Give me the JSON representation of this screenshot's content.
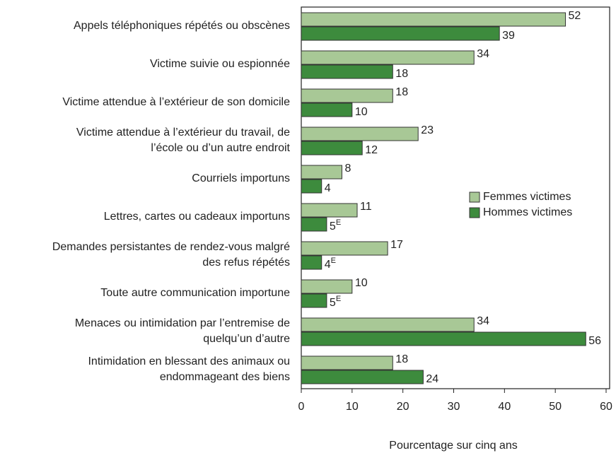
{
  "chart_data": {
    "type": "hbar",
    "categories": [
      "Appels téléphoniques répétés ou obscènes",
      "Victime suivie ou espionnée",
      "Victime attendue à l’extérieur de son domicile",
      "Victime attendue à l’extérieur du travail, de\nl’école ou d’un autre endroit",
      "Courriels importuns",
      "Lettres, cartes ou cadeaux importuns",
      "Demandes persistantes de rendez-vous malgré\ndes refus répétés",
      "Toute autre communication importune",
      "Menaces ou intimidation par l’entremise de\nquelqu’un d’autre",
      "Intimidation en blessant des animaux ou\nendommageant des biens"
    ],
    "series": [
      {
        "name": "Femmes victimes",
        "color": "#a8c896",
        "values": [
          52,
          34,
          18,
          23,
          8,
          11,
          17,
          10,
          34,
          18
        ]
      },
      {
        "name": "Hommes victimes",
        "color": "#3d8b3d",
        "values": [
          39,
          18,
          10,
          12,
          4,
          5,
          4,
          5,
          56,
          24
        ],
        "value_labels": [
          "39",
          "18",
          "10",
          "12",
          "4",
          "5E",
          "4E",
          "5E",
          "56",
          "24"
        ]
      }
    ],
    "xlabel": "Pourcentage sur cinq ans",
    "xlim": [
      0,
      60
    ],
    "xticks": [
      0,
      10,
      20,
      30,
      40,
      50,
      60
    ],
    "legend": "right"
  }
}
